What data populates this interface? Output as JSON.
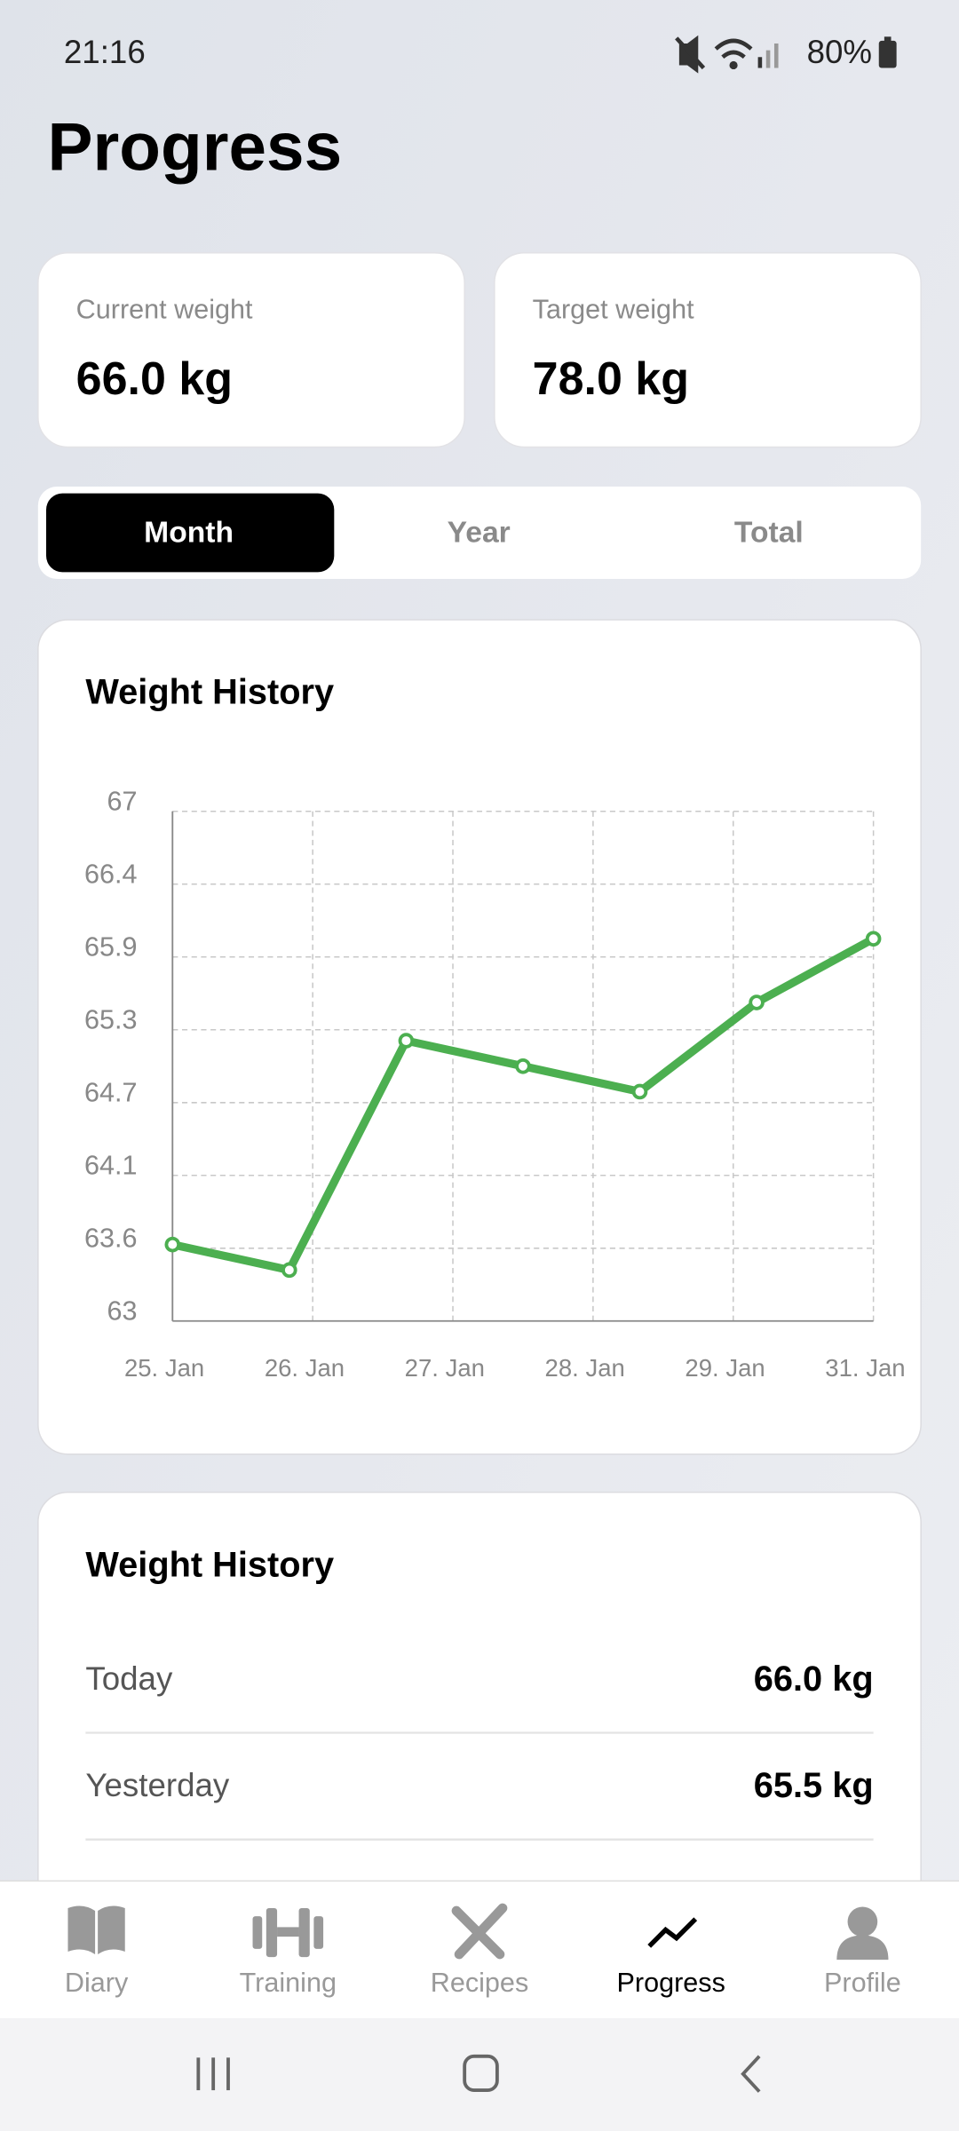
{
  "status_bar": {
    "time": "21:16",
    "battery": "80%"
  },
  "header": {
    "title": "Progress"
  },
  "stats": [
    {
      "label": "Current weight",
      "value": "66.0 kg"
    },
    {
      "label": "Target weight",
      "value": "78.0 kg"
    }
  ],
  "period_tabs": {
    "options": [
      "Month",
      "Year",
      "Total"
    ],
    "selected": "Month"
  },
  "chart_data": {
    "type": "line",
    "title": "Weight History",
    "color": "#4caf50",
    "x": [
      0,
      1,
      2,
      3,
      4,
      5,
      6
    ],
    "values": [
      63.6,
      63.4,
      65.2,
      65.0,
      64.8,
      65.5,
      66.0
    ],
    "xlim": [
      0,
      6
    ],
    "xticks": [
      {
        "value": 0,
        "label": "25. Jan"
      },
      {
        "value": 1.2,
        "label": "26. Jan"
      },
      {
        "value": 2.4,
        "label": "27. Jan"
      },
      {
        "value": 3.6,
        "label": "28. Jan"
      },
      {
        "value": 4.8,
        "label": "29. Jan"
      },
      {
        "value": 6,
        "label": "31. Jan"
      }
    ],
    "ylim": [
      63,
      67
    ],
    "yticks": [
      63,
      {
        "value": 63.571,
        "label": "63.6"
      },
      {
        "value": 64.143,
        "label": "64.1"
      },
      {
        "value": 64.714,
        "label": "64.7"
      },
      {
        "value": 65.286,
        "label": "65.3"
      },
      {
        "value": 65.857,
        "label": "65.9"
      },
      {
        "value": 66.429,
        "label": "66.4"
      },
      67
    ],
    "grid": true
  },
  "history": {
    "title": "Weight History",
    "rows": [
      [
        "Today",
        "66.0 kg"
      ],
      [
        "Yesterday",
        "65.5 kg"
      ]
    ]
  },
  "nav": {
    "items": [
      "Diary",
      "Training",
      "Recipes",
      "Progress",
      "Profile"
    ],
    "active": "Progress"
  }
}
